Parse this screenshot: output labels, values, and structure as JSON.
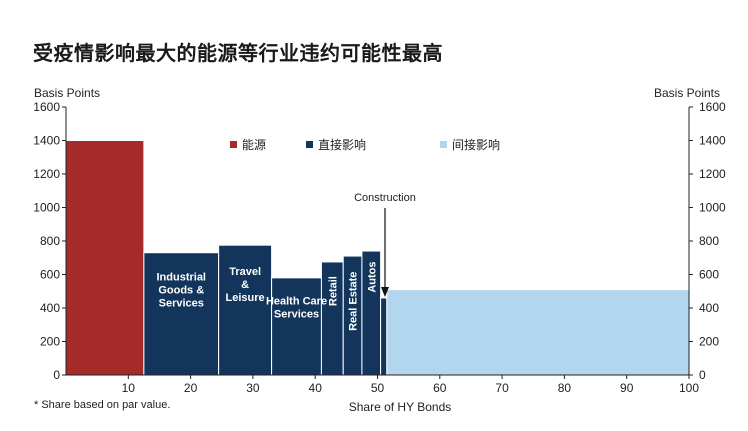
{
  "page": {
    "title": "受疫情影响最大的能源等行业违约可能性最高",
    "footnote": "* Share based on par value."
  },
  "chart_data": {
    "type": "bar",
    "subtype": "variable-width (mekko) bar chart",
    "title": "受疫情影响最大的能源等行业违约可能性最高",
    "xlabel": "Share of HY Bonds",
    "ylabel_left": "Basis Points",
    "ylabel_right": "Basis Points",
    "xlim": [
      0,
      100
    ],
    "ylim": [
      0,
      1600
    ],
    "x_ticks": [
      10,
      20,
      30,
      40,
      50,
      60,
      70,
      80,
      90,
      100
    ],
    "y_ticks": [
      0,
      200,
      400,
      600,
      800,
      1000,
      1200,
      1400,
      1600
    ],
    "grid": false,
    "legend_position": "top",
    "legend": [
      {
        "label": "能源",
        "color": "#a52a2a"
      },
      {
        "label": "直接影响",
        "color": "#13355c"
      },
      {
        "label": "间接影响",
        "color": "#b3d6ef"
      }
    ],
    "annotation": "Construction",
    "segments": [
      {
        "label": "",
        "group": "能源",
        "x_start": 0,
        "x_end": 12.5,
        "value": 1400,
        "color": "#a52a2a"
      },
      {
        "label": "Industrial\nGoods &\nServices",
        "group": "直接影响",
        "x_start": 12.5,
        "x_end": 24.5,
        "value": 730,
        "color": "#13355c"
      },
      {
        "label": "Travel\n&\nLeisure",
        "group": "直接影响",
        "x_start": 24.5,
        "x_end": 33,
        "value": 775,
        "color": "#13355c"
      },
      {
        "label": "Health Care\nServices",
        "group": "直接影响",
        "x_start": 33,
        "x_end": 41,
        "value": 580,
        "color": "#13355c"
      },
      {
        "label": "Retail",
        "group": "直接影响",
        "x_start": 41,
        "x_end": 44.5,
        "value": 675,
        "color": "#13355c"
      },
      {
        "label": "Real Estate",
        "group": "直接影响",
        "x_start": 44.5,
        "x_end": 47.5,
        "value": 710,
        "color": "#13355c"
      },
      {
        "label": "Autos",
        "group": "直接影响",
        "x_start": 47.5,
        "x_end": 50.5,
        "value": 740,
        "color": "#13355c"
      },
      {
        "label": "",
        "group": "直接影响",
        "x_start": 50.5,
        "x_end": 51.5,
        "value": 460,
        "color": "#13355c"
      },
      {
        "label": "",
        "group": "间接影响",
        "x_start": 51.5,
        "x_end": 100,
        "value": 510,
        "color": "#b3d6ef"
      }
    ]
  }
}
